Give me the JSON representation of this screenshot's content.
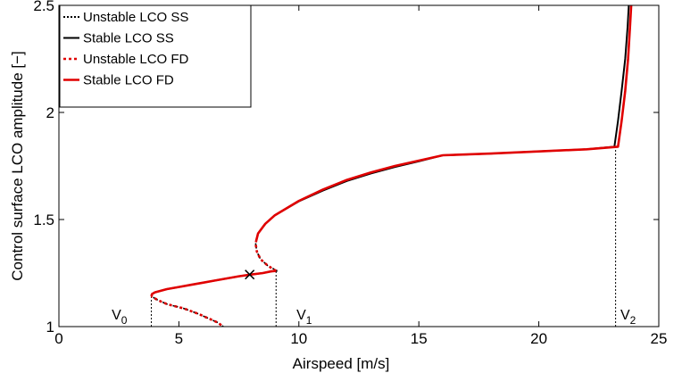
{
  "chart_data": {
    "type": "line",
    "xlabel": "Airspeed [m/s]",
    "ylabel": "Control surface LCO amplitude [−]",
    "xlim": [
      0,
      25
    ],
    "ylim": [
      1,
      2.5
    ],
    "x_ticks": [
      0,
      5,
      10,
      15,
      20,
      25
    ],
    "y_ticks": [
      1,
      1.5,
      2,
      2.5
    ],
    "x_tick_labels": [
      "0",
      "5",
      "10",
      "15",
      "20",
      "25"
    ],
    "y_tick_labels": [
      "1",
      "1.5",
      "2",
      "2.5"
    ],
    "grid": false,
    "legend_position": "top-left",
    "series": [
      {
        "name": "Unstable LCO SS",
        "color": "#000000",
        "style": "dotted",
        "segments": [
          [
            [
              3.85,
              1.15
            ],
            [
              3.88,
              1.14
            ],
            [
              4.1,
              1.125
            ],
            [
              4.5,
              1.105
            ],
            [
              5.2,
              1.085
            ],
            [
              5.8,
              1.06
            ],
            [
              6.3,
              1.035
            ],
            [
              6.6,
              1.02
            ],
            [
              6.85,
              1.0
            ]
          ],
          [
            [
              9.1,
              1.26
            ],
            [
              8.7,
              1.285
            ],
            [
              8.4,
              1.315
            ],
            [
              8.25,
              1.35
            ],
            [
              8.2,
              1.385
            ],
            [
              8.22,
              1.4
            ]
          ]
        ]
      },
      {
        "name": "Stable LCO SS",
        "color": "#000000",
        "style": "solid",
        "segments": [
          [
            [
              3.85,
              1.15
            ],
            [
              4.0,
              1.16
            ],
            [
              4.5,
              1.175
            ],
            [
              5.0,
              1.185
            ],
            [
              5.5,
              1.195
            ],
            [
              6.0,
              1.205
            ],
            [
              6.5,
              1.215
            ],
            [
              7.0,
              1.225
            ],
            [
              7.5,
              1.235
            ],
            [
              8.0,
              1.243
            ],
            [
              8.5,
              1.25
            ],
            [
              8.85,
              1.258
            ],
            [
              9.1,
              1.26
            ]
          ],
          [
            [
              8.22,
              1.4
            ],
            [
              8.3,
              1.435
            ],
            [
              8.6,
              1.48
            ],
            [
              9.0,
              1.52
            ],
            [
              10.0,
              1.585
            ],
            [
              11.0,
              1.635
            ],
            [
              12.0,
              1.68
            ],
            [
              13.0,
              1.715
            ],
            [
              14.0,
              1.745
            ],
            [
              15.0,
              1.772
            ],
            [
              16.0,
              1.8
            ],
            [
              18.0,
              1.808
            ],
            [
              20.0,
              1.818
            ],
            [
              22.0,
              1.828
            ],
            [
              23.15,
              1.84
            ],
            [
              23.3,
              1.96
            ],
            [
              23.45,
              2.1
            ],
            [
              23.6,
              2.25
            ],
            [
              23.7,
              2.4
            ],
            [
              23.75,
              2.5
            ]
          ]
        ]
      },
      {
        "name": "Unstable LCO FD",
        "color": "#e00000",
        "style": "dotted",
        "segments": [
          [
            [
              3.85,
              1.15
            ],
            [
              3.88,
              1.14
            ],
            [
              4.1,
              1.125
            ],
            [
              4.5,
              1.105
            ],
            [
              5.2,
              1.085
            ],
            [
              5.8,
              1.06
            ],
            [
              6.3,
              1.035
            ],
            [
              6.6,
              1.02
            ],
            [
              6.85,
              1.0
            ]
          ],
          [
            [
              9.05,
              1.26
            ],
            [
              8.7,
              1.285
            ],
            [
              8.4,
              1.315
            ],
            [
              8.25,
              1.35
            ],
            [
              8.2,
              1.385
            ],
            [
              8.22,
              1.4
            ]
          ]
        ]
      },
      {
        "name": "Stable LCO FD",
        "color": "#e00000",
        "style": "solid",
        "segments": [
          [
            [
              3.85,
              1.15
            ],
            [
              4.0,
              1.16
            ],
            [
              4.5,
              1.175
            ],
            [
              5.0,
              1.185
            ],
            [
              5.5,
              1.195
            ],
            [
              6.0,
              1.205
            ],
            [
              6.5,
              1.215
            ],
            [
              7.0,
              1.225
            ],
            [
              7.5,
              1.235
            ],
            [
              8.0,
              1.243
            ],
            [
              8.5,
              1.25
            ],
            [
              8.85,
              1.258
            ],
            [
              9.05,
              1.26
            ]
          ],
          [
            [
              8.22,
              1.4
            ],
            [
              8.3,
              1.435
            ],
            [
              8.6,
              1.48
            ],
            [
              9.0,
              1.52
            ],
            [
              10.0,
              1.587
            ],
            [
              11.0,
              1.64
            ],
            [
              12.0,
              1.685
            ],
            [
              13.0,
              1.72
            ],
            [
              14.0,
              1.75
            ],
            [
              15.0,
              1.775
            ],
            [
              16.0,
              1.8
            ],
            [
              18.0,
              1.808
            ],
            [
              20.0,
              1.818
            ],
            [
              22.0,
              1.828
            ],
            [
              23.3,
              1.84
            ],
            [
              23.45,
              1.96
            ],
            [
              23.6,
              2.1
            ],
            [
              23.72,
              2.25
            ],
            [
              23.8,
              2.4
            ],
            [
              23.85,
              2.5
            ]
          ]
        ]
      }
    ],
    "markers": [
      {
        "symbol": "x",
        "x": 7.95,
        "y": 1.243,
        "color": "#000000"
      }
    ],
    "vlines": [
      {
        "x": 3.85,
        "y_from": 1.0,
        "y_to": 1.15,
        "style": "dotted",
        "color": "#000000"
      },
      {
        "x": 9.05,
        "y_from": 1.0,
        "y_to": 1.26,
        "style": "dotted",
        "color": "#000000"
      },
      {
        "x": 23.2,
        "y_from": 1.0,
        "y_to": 1.84,
        "style": "dotted",
        "color": "#000000"
      }
    ],
    "annotations": [
      {
        "id": "v0",
        "text": "V",
        "sub": "0",
        "x": 2.2,
        "y": 1.025
      },
      {
        "id": "v1",
        "text": "V",
        "sub": "1",
        "x": 9.9,
        "y": 1.025
      },
      {
        "id": "v2",
        "text": "V",
        "sub": "2",
        "x": 23.4,
        "y": 1.025
      }
    ]
  }
}
